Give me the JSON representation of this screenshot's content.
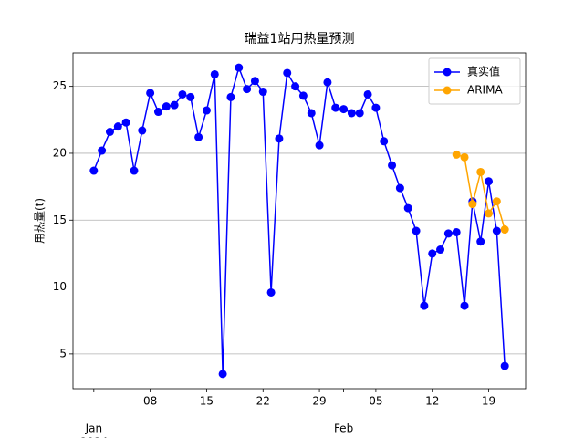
{
  "chart_data": {
    "type": "line",
    "title": "瑞益1站用热量预测",
    "ylabel": "用热量(t)",
    "x": [
      "2024-01-01",
      "2024-01-02",
      "2024-01-03",
      "2024-01-04",
      "2024-01-05",
      "2024-01-06",
      "2024-01-07",
      "2024-01-08",
      "2024-01-09",
      "2024-01-10",
      "2024-01-11",
      "2024-01-12",
      "2024-01-13",
      "2024-01-14",
      "2024-01-15",
      "2024-01-16",
      "2024-01-17",
      "2024-01-18",
      "2024-01-19",
      "2024-01-20",
      "2024-01-21",
      "2024-01-22",
      "2024-01-23",
      "2024-01-24",
      "2024-01-25",
      "2024-01-26",
      "2024-01-27",
      "2024-01-28",
      "2024-01-29",
      "2024-01-30",
      "2024-01-31",
      "2024-02-01",
      "2024-02-02",
      "2024-02-03",
      "2024-02-04",
      "2024-02-05",
      "2024-02-06",
      "2024-02-07",
      "2024-02-08",
      "2024-02-09",
      "2024-02-10",
      "2024-02-11",
      "2024-02-12",
      "2024-02-13",
      "2024-02-14",
      "2024-02-15",
      "2024-02-16",
      "2024-02-17",
      "2024-02-18",
      "2024-02-19",
      "2024-02-20",
      "2024-02-21"
    ],
    "series": [
      {
        "name": "真实值",
        "color": "#0000ff",
        "values": [
          18.7,
          20.2,
          21.6,
          22.0,
          22.3,
          18.7,
          21.7,
          24.5,
          23.1,
          23.5,
          23.6,
          24.4,
          24.2,
          21.2,
          23.2,
          25.9,
          3.5,
          24.2,
          26.4,
          24.8,
          25.4,
          24.6,
          9.6,
          21.1,
          26.0,
          25.0,
          24.3,
          23.0,
          20.6,
          25.3,
          23.4,
          23.3,
          23.0,
          23.0,
          24.4,
          23.4,
          20.9,
          19.1,
          17.4,
          15.9,
          14.2,
          8.6,
          12.5,
          12.8,
          14.0,
          14.1,
          8.6,
          16.4,
          13.4,
          17.9,
          14.2,
          4.1
        ]
      },
      {
        "name": "ARIMA",
        "color": "#ffa500",
        "values": [
          null,
          null,
          null,
          null,
          null,
          null,
          null,
          null,
          null,
          null,
          null,
          null,
          null,
          null,
          null,
          null,
          null,
          null,
          null,
          null,
          null,
          null,
          null,
          null,
          null,
          null,
          null,
          null,
          null,
          null,
          null,
          null,
          null,
          null,
          null,
          null,
          null,
          null,
          null,
          null,
          null,
          null,
          null,
          null,
          null,
          19.9,
          19.7,
          16.2,
          18.6,
          15.5,
          16.4,
          14.3
        ]
      }
    ],
    "xlim": [
      "2023-12-29T10:00",
      "2024-02-23T14:00"
    ],
    "xticks": [
      {
        "value": "2024-01-01",
        "label": "Jan"
      },
      {
        "value": "2024-01-08",
        "label": "08"
      },
      {
        "value": "2024-01-15",
        "label": "15"
      },
      {
        "value": "2024-01-22",
        "label": "22"
      },
      {
        "value": "2024-01-29",
        "label": "29"
      },
      {
        "value": "2024-02-01",
        "label": "Feb"
      },
      {
        "value": "2024-02-05",
        "label": "05"
      },
      {
        "value": "2024-02-12",
        "label": "12"
      },
      {
        "value": "2024-02-19",
        "label": "19"
      }
    ],
    "x_year_label": "2024",
    "ylim": [
      2.4,
      27.5
    ],
    "yticks": [
      5,
      10,
      15,
      20,
      25
    ],
    "grid": true,
    "legend": "upper right"
  }
}
